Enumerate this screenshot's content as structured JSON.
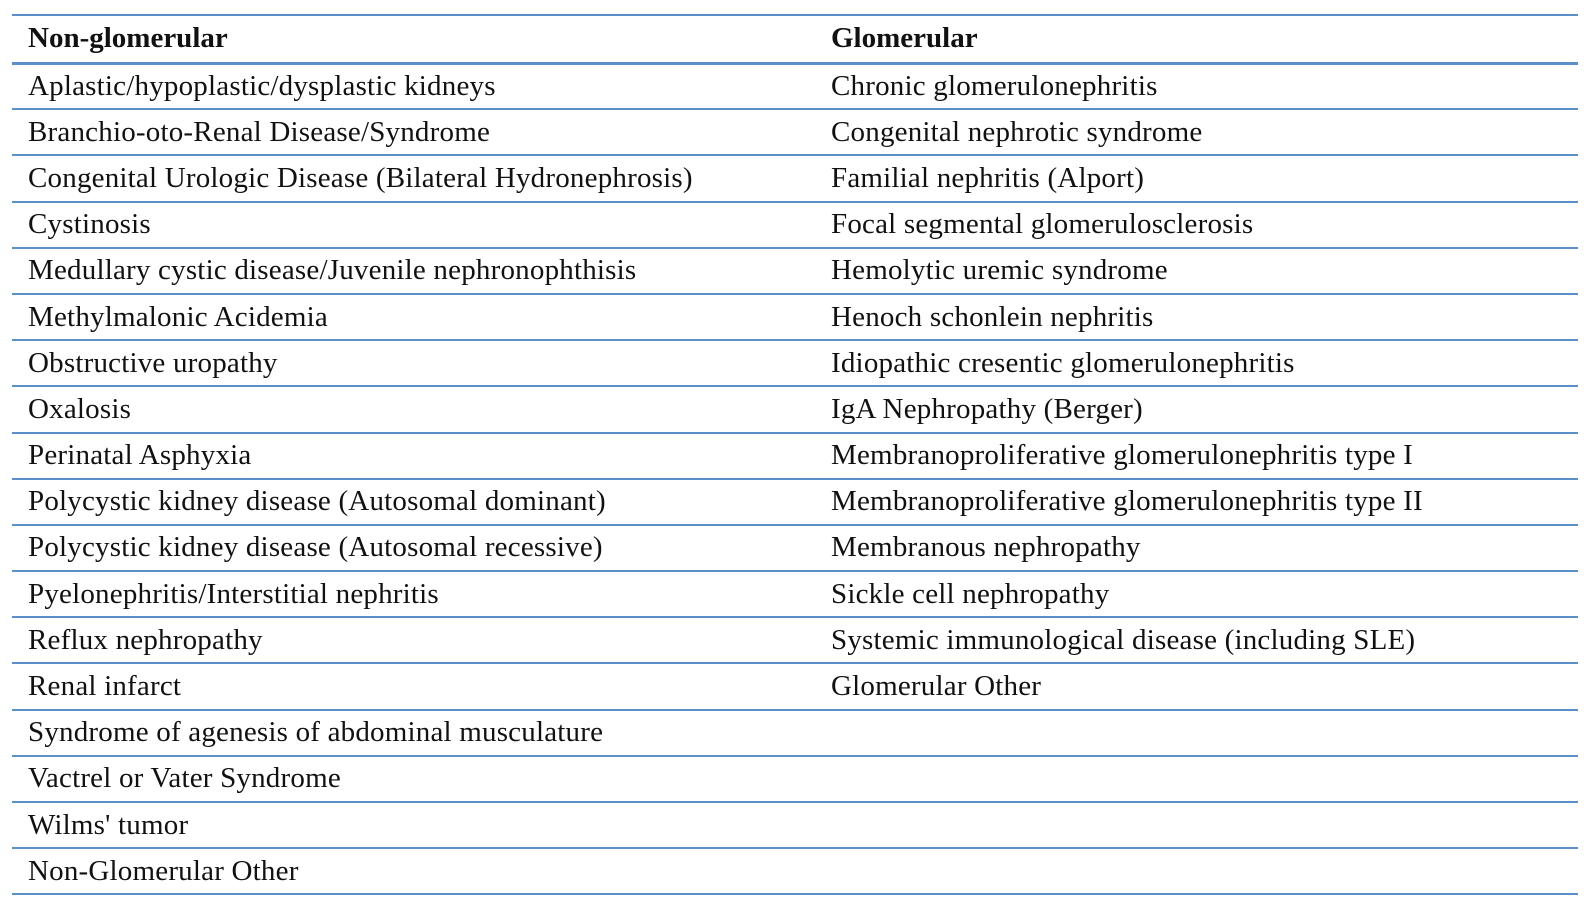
{
  "table": {
    "headers": [
      "Non-glomerular",
      "Glomerular"
    ],
    "rows": [
      [
        "Aplastic/hypoplastic/dysplastic kidneys",
        "Chronic glomerulonephritis"
      ],
      [
        "Branchio-oto-Renal Disease/Syndrome",
        "Congenital nephrotic syndrome"
      ],
      [
        "Congenital Urologic Disease (Bilateral Hydronephrosis)",
        "Familial nephritis (Alport)"
      ],
      [
        "Cystinosis",
        "Focal segmental glomerulosclerosis"
      ],
      [
        "Medullary cystic disease/Juvenile nephronophthisis",
        "Hemolytic uremic syndrome"
      ],
      [
        "Methylmalonic Acidemia",
        "Henoch schonlein nephritis"
      ],
      [
        "Obstructive uropathy",
        "Idiopathic cresentic glomerulonephritis"
      ],
      [
        "Oxalosis",
        "IgA Nephropathy (Berger)"
      ],
      [
        "Perinatal Asphyxia",
        "Membranoproliferative glomerulonephritis type I"
      ],
      [
        "Polycystic kidney disease (Autosomal dominant)",
        "Membranoproliferative glomerulonephritis type II"
      ],
      [
        "Polycystic kidney disease (Autosomal recessive)",
        "Membranous nephropathy"
      ],
      [
        "Pyelonephritis/Interstitial nephritis",
        "Sickle cell nephropathy"
      ],
      [
        "Reflux nephropathy",
        "Systemic immunological disease (including SLE)"
      ],
      [
        "Renal infarct",
        "Glomerular Other"
      ],
      [
        "Syndrome of agenesis of abdominal musculature",
        ""
      ],
      [
        "Vactrel or Vater Syndrome",
        ""
      ],
      [
        "Wilms' tumor",
        ""
      ],
      [
        "Non-Glomerular Other",
        ""
      ]
    ]
  },
  "colors": {
    "rule": "#5b8fc7",
    "text": "#111111"
  }
}
